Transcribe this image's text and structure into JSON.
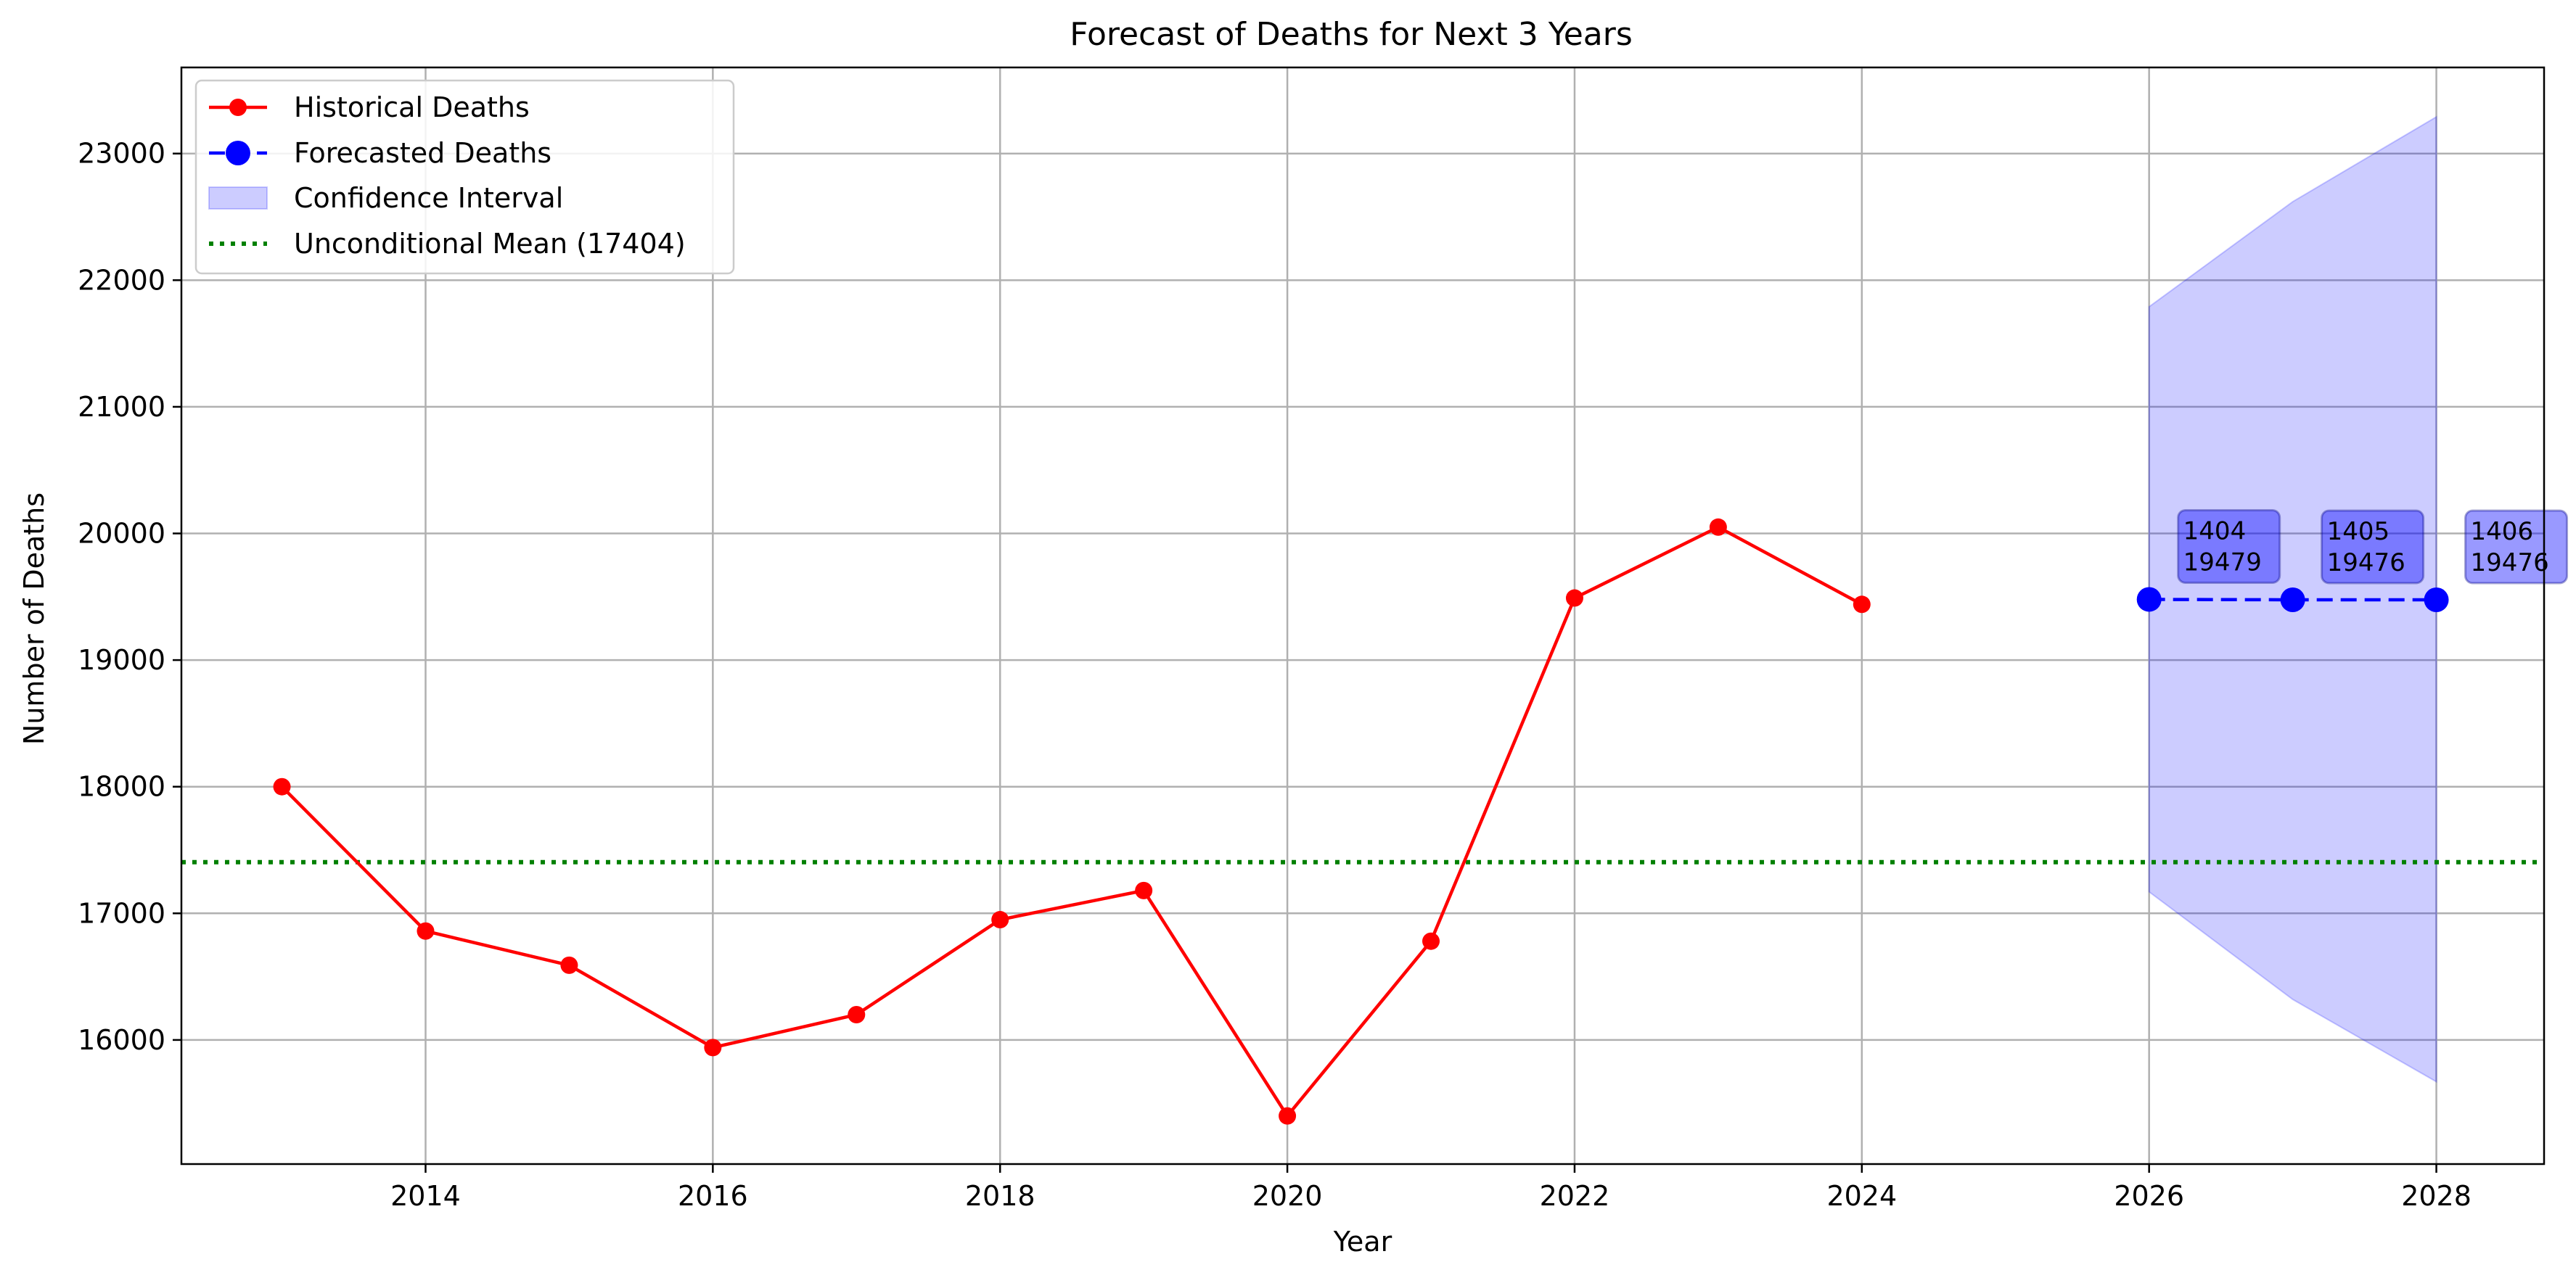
{
  "chart_data": {
    "type": "line",
    "title": "Forecast of Deaths for Next 3 Years",
    "xlabel": "Year",
    "ylabel": "Number of Deaths",
    "xlim": [
      2012.3,
      2028.75
    ],
    "ylim": [
      15020,
      23680
    ],
    "grid": true,
    "legend_position": "upper-left",
    "x_ticks": [
      2014,
      2016,
      2018,
      2020,
      2022,
      2024,
      2026,
      2028
    ],
    "x_tick_labels": [
      "2014",
      "2016",
      "2018",
      "2020",
      "2022",
      "2024",
      "2026",
      "2028"
    ],
    "y_ticks": [
      16000,
      17000,
      18000,
      19000,
      20000,
      21000,
      22000,
      23000
    ],
    "y_tick_labels": [
      "16000",
      "17000",
      "18000",
      "19000",
      "20000",
      "21000",
      "22000",
      "23000"
    ],
    "series": [
      {
        "name": "Historical Deaths",
        "kind": "line-marker",
        "color": "#ff0000",
        "line_style": "solid",
        "x": [
          2013,
          2014,
          2015,
          2016,
          2017,
          2018,
          2019,
          2020,
          2021,
          2022,
          2023,
          2024
        ],
        "y": [
          18000,
          16860,
          16590,
          15940,
          16200,
          16950,
          17180,
          15400,
          16780,
          19490,
          20050,
          19440
        ]
      },
      {
        "name": "Forecasted Deaths",
        "kind": "line-marker",
        "color": "#0000ff",
        "line_style": "dashed",
        "x": [
          2026,
          2027,
          2028
        ],
        "y": [
          19479,
          19476,
          19476
        ]
      },
      {
        "name": "Confidence Interval",
        "kind": "band",
        "color": "#0000ff",
        "x": [
          2026,
          2027,
          2028
        ],
        "lower": [
          17170,
          16320,
          15670
        ],
        "upper": [
          21790,
          22620,
          23290
        ]
      },
      {
        "name": "Unconditional Mean (17404)",
        "kind": "hline",
        "color": "#008000",
        "line_style": "dotted",
        "y": 17404
      }
    ],
    "annotations": [
      {
        "x": 2026,
        "y": 19479,
        "line1": "1404",
        "line2": "19479"
      },
      {
        "x": 2027,
        "y": 19476,
        "line1": "1405",
        "line2": "19476"
      },
      {
        "x": 2028,
        "y": 19476,
        "line1": "1406",
        "line2": "19476"
      }
    ]
  }
}
